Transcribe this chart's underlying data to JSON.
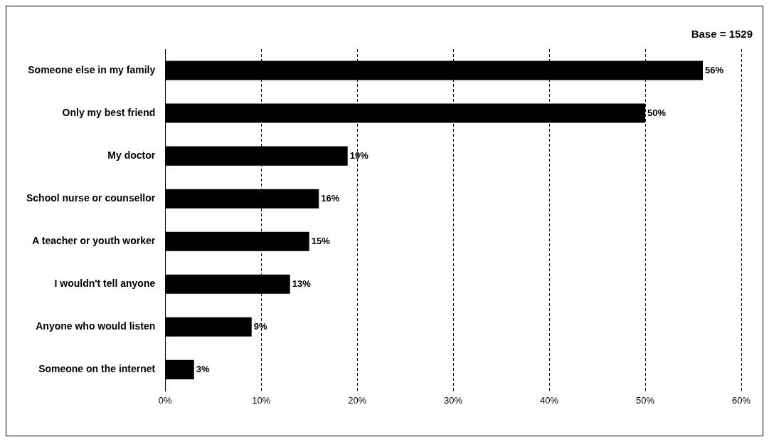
{
  "chart_data": {
    "type": "bar",
    "orientation": "horizontal",
    "categories": [
      "Someone else in my family",
      "Only my best friend",
      "My doctor",
      "School nurse or counsellor",
      "A teacher or youth worker",
      "I wouldn't tell anyone",
      "Anyone who would listen",
      "Someone on the internet"
    ],
    "values": [
      56,
      50,
      19,
      16,
      15,
      13,
      9,
      3
    ],
    "value_labels": [
      "56%",
      "50%",
      "19%",
      "16%",
      "15%",
      "13%",
      "9%",
      "3%"
    ],
    "color": "#000000",
    "xlim": [
      0,
      60
    ],
    "xticks": [
      {
        "value": 0,
        "label": "0%"
      },
      {
        "value": 10,
        "label": "10%"
      },
      {
        "value": 20,
        "label": "20%"
      },
      {
        "value": 30,
        "label": "30%"
      },
      {
        "value": 40,
        "label": "40%"
      },
      {
        "value": 50,
        "label": "50%"
      },
      {
        "value": 60,
        "label": "60%"
      }
    ],
    "grid": "x",
    "line_style": "dashed",
    "annotations": [
      "Base = 1529"
    ]
  }
}
